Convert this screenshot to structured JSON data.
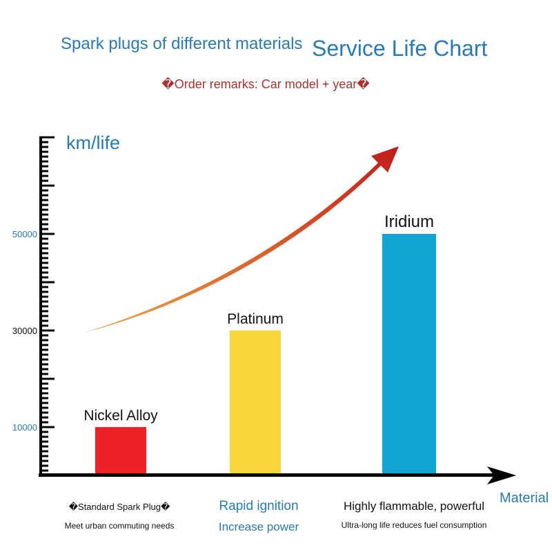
{
  "header": {
    "title_left": "Spark plugs of different materials",
    "title_right": "Service Life Chart",
    "remark": "�Order remarks: Car model + year�"
  },
  "chart_data": {
    "type": "bar",
    "ylabel": "km/life",
    "xlabel": "Material",
    "ylim": [
      0,
      70000
    ],
    "yticks": [
      10000,
      30000,
      50000
    ],
    "categories": [
      "Nickel Alloy",
      "Platinum",
      "Iridium"
    ],
    "values": [
      10000,
      30000,
      50000
    ],
    "colors": [
      "#ee2127",
      "#f7d63c",
      "#11a6d2"
    ],
    "trend_arrow": "increasing"
  },
  "captions": [
    {
      "line1": "�Standard Spark Plug�",
      "line2": "Meet urban commuting needs"
    },
    {
      "line1": "Rapid ignition",
      "line2": "Increase power"
    },
    {
      "line1": "Highly flammable, powerful",
      "line2": "Ultra-long life reduces fuel consumption"
    }
  ]
}
